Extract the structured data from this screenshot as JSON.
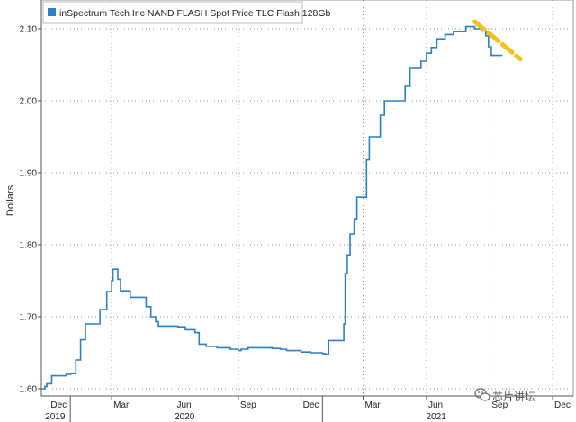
{
  "chart_data": {
    "type": "line",
    "title": "",
    "xlabel": "",
    "ylabel": "Dollars",
    "ylim": [
      1.59,
      2.14
    ],
    "yticks": [
      1.6,
      1.7,
      1.8,
      1.9,
      2.0,
      2.1
    ],
    "ytick_labels": [
      "1.60",
      "1.70",
      "1.80",
      "1.90",
      "2.00",
      "2.10"
    ],
    "xlim": [
      "2019-11-20",
      "2021-12-31"
    ],
    "xticks": [
      {
        "date": "2019-12-01",
        "label": "Dec"
      },
      {
        "date": "2020-03-01",
        "label": "Mar"
      },
      {
        "date": "2020-06-01",
        "label": "Jun"
      },
      {
        "date": "2020-09-01",
        "label": "Sep"
      },
      {
        "date": "2020-12-01",
        "label": "Dec"
      },
      {
        "date": "2021-03-01",
        "label": "Mar"
      },
      {
        "date": "2021-06-01",
        "label": "Jun"
      },
      {
        "date": "2021-09-01",
        "label": "Sep"
      },
      {
        "date": "2021-12-01",
        "label": "Dec"
      }
    ],
    "year_labels": [
      {
        "date": "2019-12-10",
        "label": "2019"
      },
      {
        "date": "2020-06-15",
        "label": "2020"
      },
      {
        "date": "2021-06-15",
        "label": "2021"
      }
    ],
    "year_boundaries": [
      "2020-01-01",
      "2021-01-01"
    ],
    "grid": true,
    "legend_position": "top-left",
    "series": [
      {
        "name": "inSpectrum Tech Inc NAND FLASH Spot Price TLC Flash 128Gb",
        "color": "#2f7fc1",
        "step": true,
        "points": [
          [
            "2019-11-20",
            1.6
          ],
          [
            "2019-11-25",
            1.603
          ],
          [
            "2019-11-28",
            1.607
          ],
          [
            "2019-12-05",
            1.618
          ],
          [
            "2019-12-26",
            1.62
          ],
          [
            "2020-01-02",
            1.621
          ],
          [
            "2020-01-09",
            1.64
          ],
          [
            "2020-01-16",
            1.668
          ],
          [
            "2020-01-23",
            1.69
          ],
          [
            "2020-02-13",
            1.71
          ],
          [
            "2020-02-23",
            1.735
          ],
          [
            "2020-03-01",
            1.75
          ],
          [
            "2020-03-03",
            1.766
          ],
          [
            "2020-03-10",
            1.752
          ],
          [
            "2020-03-14",
            1.736
          ],
          [
            "2020-03-28",
            1.727
          ],
          [
            "2020-04-20",
            1.714
          ],
          [
            "2020-04-27",
            1.7
          ],
          [
            "2020-05-04",
            1.693
          ],
          [
            "2020-05-08",
            1.687
          ],
          [
            "2020-06-05",
            1.686
          ],
          [
            "2020-06-16",
            1.682
          ],
          [
            "2020-06-30",
            1.678
          ],
          [
            "2020-07-06",
            1.662
          ],
          [
            "2020-07-16",
            1.659
          ],
          [
            "2020-08-01",
            1.657
          ],
          [
            "2020-08-20",
            1.655
          ],
          [
            "2020-09-01",
            1.653
          ],
          [
            "2020-09-05",
            1.655
          ],
          [
            "2020-09-15",
            1.657
          ],
          [
            "2020-10-01",
            1.657
          ],
          [
            "2020-10-20",
            1.656
          ],
          [
            "2020-11-01",
            1.655
          ],
          [
            "2020-11-10",
            1.653
          ],
          [
            "2020-12-01",
            1.651
          ],
          [
            "2020-12-15",
            1.65
          ],
          [
            "2021-01-01",
            1.649
          ],
          [
            "2021-01-05",
            1.648
          ],
          [
            "2021-01-10",
            1.667
          ],
          [
            "2021-02-01",
            1.69
          ],
          [
            "2021-02-03",
            1.76
          ],
          [
            "2021-02-06",
            1.786
          ],
          [
            "2021-02-10",
            1.815
          ],
          [
            "2021-02-16",
            1.836
          ],
          [
            "2021-02-20",
            1.866
          ],
          [
            "2021-03-01",
            1.866
          ],
          [
            "2021-03-06",
            1.918
          ],
          [
            "2021-03-10",
            1.95
          ],
          [
            "2021-03-26",
            1.98
          ],
          [
            "2021-04-01",
            2.0
          ],
          [
            "2021-05-01",
            2.02
          ],
          [
            "2021-05-08",
            2.045
          ],
          [
            "2021-05-24",
            2.055
          ],
          [
            "2021-06-01",
            2.066
          ],
          [
            "2021-06-08",
            2.074
          ],
          [
            "2021-06-16",
            2.086
          ],
          [
            "2021-06-28",
            2.092
          ],
          [
            "2021-07-10",
            2.096
          ],
          [
            "2021-07-28",
            2.103
          ],
          [
            "2021-08-10",
            2.1
          ],
          [
            "2021-08-20",
            2.097
          ],
          [
            "2021-08-26",
            2.09
          ],
          [
            "2021-08-30",
            2.075
          ],
          [
            "2021-09-03",
            2.063
          ],
          [
            "2021-09-18",
            2.062
          ]
        ]
      }
    ],
    "trend_marker": {
      "color": "#f0c21a",
      "style": "dashed",
      "from": [
        "2021-08-10",
        2.11
      ],
      "to": [
        "2021-10-15",
        2.058
      ]
    }
  },
  "watermark": {
    "icon": "wechat-icon",
    "text": "芯片讲坛"
  }
}
